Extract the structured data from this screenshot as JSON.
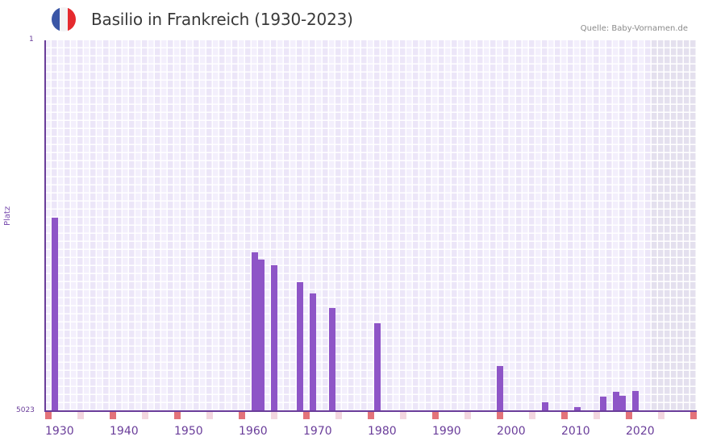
{
  "header": {
    "title": "Basilio in Frankreich (1930-2023)",
    "source": "Quelle: Baby-Vornamen.de",
    "flag_colors": [
      "#3a56a6",
      "#f3f3f5",
      "#e52a2e"
    ]
  },
  "colors": {
    "bar": "#8e55c7",
    "axis": "#6a3d9a",
    "grid_light": "#f3effc",
    "grid_dark": "#ece6f8",
    "future_shade": "#e4e0ee",
    "decade_marker": "#e3737a",
    "half_decade_marker": "#f3d6df"
  },
  "chart_data": {
    "type": "bar",
    "title": "Basilio in Frankreich (1930-2023)",
    "xlabel": "",
    "ylabel": "Platz",
    "y_axis_inverted": true,
    "ylim": [
      1,
      5023
    ],
    "y_ticks": [
      "1",
      "5023"
    ],
    "x_range": [
      1930,
      2030
    ],
    "x_ticks": [
      "1930",
      "1940",
      "1950",
      "1960",
      "1970",
      "1980",
      "1990",
      "2000",
      "2010",
      "2020"
    ],
    "shaded_from_year": 2024,
    "grid": true,
    "legend": null,
    "x": [
      1931,
      1962,
      1963,
      1965,
      1969,
      1971,
      1974,
      1981,
      2000,
      2007,
      2012,
      2016,
      2018,
      2019,
      2021
    ],
    "values": [
      2403,
      2872,
      2970,
      3047,
      3276,
      3429,
      3626,
      3833,
      4412,
      4903,
      4968,
      4826,
      4761,
      4815,
      4750
    ]
  },
  "axis": {
    "y_top": "1",
    "y_bottom": "5023",
    "y_label": "Platz"
  }
}
